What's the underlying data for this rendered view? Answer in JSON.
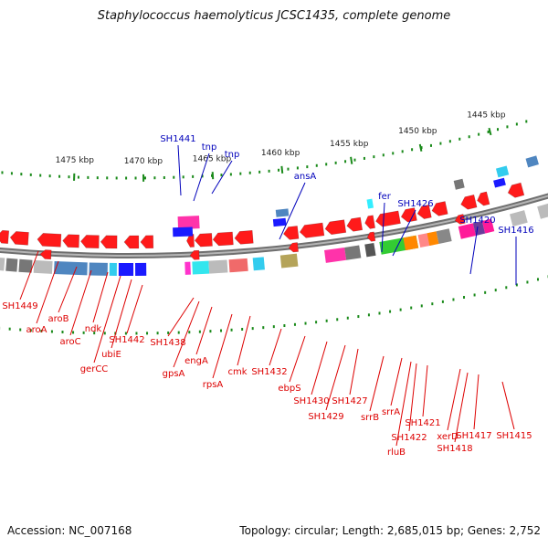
{
  "title": "Staphylococcus haemolyticus JCSC1435, complete genome",
  "footer": {
    "accession": "Accession: NC_007168",
    "summary": "Topology: circular; Length: 2,685,015 bp; Genes: 2,752"
  },
  "colors": {
    "backbone": "#8a8a8a",
    "tick": "#1a8a1a",
    "kbp_label": "#222222",
    "label_red": "#dd0000",
    "label_blue": "#0000bb"
  },
  "kbp_labels": [
    "1475 kbp",
    "1470 kbp",
    "1465 kbp",
    "1460 kbp",
    "1455 kbp",
    "1450 kbp",
    "1445 kbp"
  ],
  "genes_outer": [
    "SH1441",
    "tnp",
    "tnp",
    "ansA",
    "fer",
    "SH1426",
    "SH1420",
    "SH1416"
  ],
  "genes_inner": [
    "SH1449",
    "aroA",
    "aroB",
    "aroC",
    "ndk",
    "gerCC",
    "ubiE",
    "SH1442",
    "SH1438",
    "gpsA",
    "engA",
    "rpsA",
    "cmk",
    "SH1432",
    "ebpS",
    "SH1430",
    "SH1429",
    "SH1427",
    "srrB",
    "srrA",
    "rluB",
    "SH1422",
    "SH1421",
    "xerD",
    "SH1418",
    "SH1417",
    "SH1415"
  ]
}
